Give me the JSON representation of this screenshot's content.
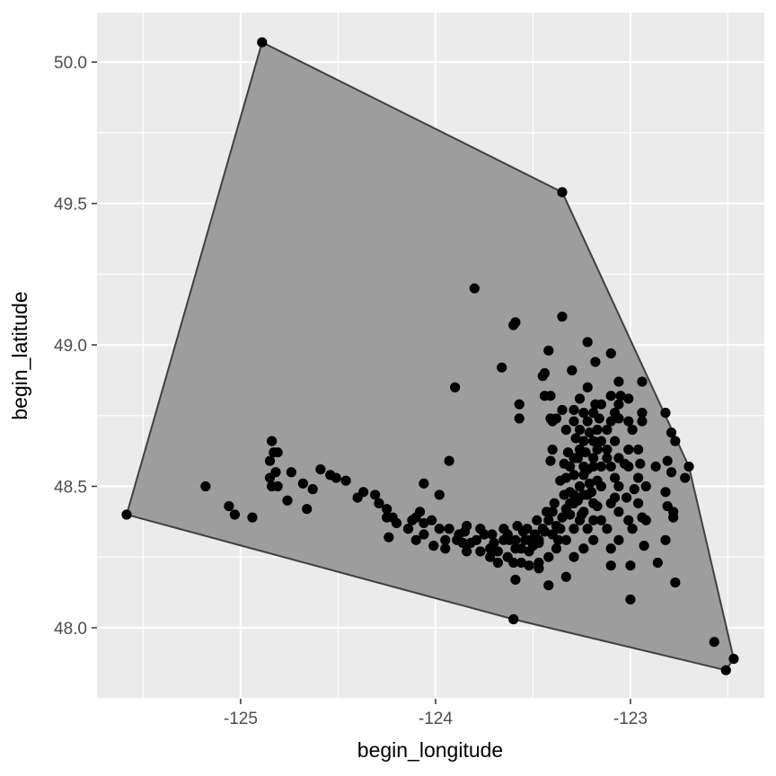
{
  "chart_data": {
    "type": "scatter",
    "title": "",
    "xlabel": "begin_longitude",
    "ylabel": "begin_latitude",
    "xlim": [
      -125.737,
      -122.313
    ],
    "ylim": [
      47.749,
      50.175
    ],
    "x_ticks": [
      -125,
      -124,
      -123
    ],
    "x_tick_labels": [
      "-125",
      "-124",
      "-123"
    ],
    "y_ticks": [
      48.0,
      48.5,
      49.0,
      49.5,
      50.0
    ],
    "y_tick_labels": [
      "48.0",
      "48.5",
      "49.0",
      "49.5",
      "50.0"
    ],
    "grid": true,
    "legend": "none",
    "colors": {
      "panel": "#EBEBEB",
      "grid": "#FFFFFF",
      "hull_fill": "#999999",
      "hull_stroke": "#404040",
      "points": "#000000"
    },
    "hull": [
      [
        -124.89,
        50.07
      ],
      [
        -123.35,
        49.54
      ],
      [
        -122.7,
        48.57
      ],
      [
        -122.47,
        47.89
      ],
      [
        -122.51,
        47.85
      ],
      [
        -123.6,
        48.03
      ],
      [
        -125.585,
        48.4
      ]
    ],
    "points": [
      [
        -124.89,
        50.07
      ],
      [
        -123.35,
        49.54
      ],
      [
        -123.8,
        49.2
      ],
      [
        -123.59,
        49.08
      ],
      [
        -123.6,
        49.07
      ],
      [
        -123.35,
        49.1
      ],
      [
        -123.42,
        48.98
      ],
      [
        -123.22,
        49.01
      ],
      [
        -123.66,
        48.92
      ],
      [
        -123.9,
        48.85
      ],
      [
        -123.57,
        48.79
      ],
      [
        -123.57,
        48.74
      ],
      [
        -123.45,
        48.89
      ],
      [
        -123.44,
        48.9
      ],
      [
        -123.41,
        48.82
      ],
      [
        -123.3,
        48.91
      ],
      [
        -123.18,
        48.94
      ],
      [
        -123.1,
        48.97
      ],
      [
        -122.94,
        48.87
      ],
      [
        -123.06,
        48.87
      ],
      [
        -122.82,
        48.76
      ],
      [
        -122.79,
        48.69
      ],
      [
        -122.77,
        48.66
      ],
      [
        -122.7,
        48.57
      ],
      [
        -122.72,
        48.53
      ],
      [
        -122.81,
        48.59
      ],
      [
        -122.79,
        48.55
      ],
      [
        -122.82,
        48.48
      ],
      [
        -122.81,
        48.43
      ],
      [
        -122.78,
        48.41
      ],
      [
        -122.82,
        48.31
      ],
      [
        -122.78,
        48.39
      ],
      [
        -122.86,
        48.23
      ],
      [
        -122.77,
        48.16
      ],
      [
        -122.47,
        47.89
      ],
      [
        -122.51,
        47.85
      ],
      [
        -122.57,
        47.95
      ],
      [
        -123.0,
        48.1
      ],
      [
        -123.0,
        48.22
      ],
      [
        -123.1,
        48.22
      ],
      [
        -122.93,
        48.29
      ],
      [
        -123.6,
        48.03
      ],
      [
        -123.47,
        48.21
      ],
      [
        -123.42,
        48.15
      ],
      [
        -123.33,
        48.18
      ],
      [
        -125.585,
        48.4
      ],
      [
        -125.18,
        48.5
      ],
      [
        -125.06,
        48.43
      ],
      [
        -125.03,
        48.4
      ],
      [
        -124.94,
        48.39
      ],
      [
        -124.84,
        48.66
      ],
      [
        -124.83,
        48.62
      ],
      [
        -124.85,
        48.59
      ],
      [
        -124.84,
        48.5
      ],
      [
        -124.76,
        48.45
      ],
      [
        -124.66,
        48.42
      ],
      [
        -124.68,
        48.51
      ],
      [
        -124.63,
        48.49
      ],
      [
        -124.59,
        48.56
      ],
      [
        -124.54,
        48.54
      ],
      [
        -124.51,
        48.53
      ],
      [
        -124.46,
        48.52
      ],
      [
        -124.4,
        48.46
      ],
      [
        -124.37,
        48.48
      ],
      [
        -124.31,
        48.47
      ],
      [
        -124.29,
        48.44
      ],
      [
        -124.25,
        48.42
      ],
      [
        -124.25,
        48.39
      ],
      [
        -124.22,
        48.39
      ],
      [
        -124.2,
        48.37
      ],
      [
        -124.24,
        48.32
      ],
      [
        -124.14,
        48.35
      ],
      [
        -124.12,
        48.38
      ],
      [
        -124.1,
        48.39
      ],
      [
        -124.08,
        48.41
      ],
      [
        -124.06,
        48.51
      ],
      [
        -123.98,
        48.47
      ],
      [
        -123.93,
        48.59
      ],
      [
        -124.06,
        48.37
      ],
      [
        -124.1,
        48.31
      ],
      [
        -124.01,
        48.29
      ],
      [
        -124.06,
        48.33
      ],
      [
        -124.02,
        48.38
      ],
      [
        -123.98,
        48.35
      ],
      [
        -123.95,
        48.31
      ],
      [
        -123.95,
        48.28
      ],
      [
        -123.93,
        48.35
      ],
      [
        -123.88,
        48.33
      ],
      [
        -123.86,
        48.3
      ],
      [
        -123.84,
        48.27
      ],
      [
        -123.79,
        48.31
      ],
      [
        -123.75,
        48.33
      ],
      [
        -123.72,
        48.28
      ],
      [
        -123.7,
        48.3
      ],
      [
        -123.68,
        48.27
      ],
      [
        -123.65,
        48.31
      ],
      [
        -123.63,
        48.33
      ],
      [
        -123.6,
        48.23
      ],
      [
        -123.59,
        48.17
      ],
      [
        -123.56,
        48.28
      ],
      [
        -123.54,
        48.31
      ],
      [
        -123.52,
        48.27
      ],
      [
        -123.49,
        48.33
      ],
      [
        -123.47,
        48.3
      ],
      [
        -123.45,
        48.35
      ],
      [
        -123.42,
        48.38
      ],
      [
        -123.4,
        48.33
      ],
      [
        -123.38,
        48.36
      ],
      [
        -123.35,
        48.39
      ],
      [
        -123.33,
        48.42
      ],
      [
        -123.31,
        48.44
      ],
      [
        -123.29,
        48.47
      ],
      [
        -123.26,
        48.5
      ],
      [
        -123.24,
        48.54
      ],
      [
        -123.22,
        48.56
      ],
      [
        -123.19,
        48.6
      ],
      [
        -123.17,
        48.63
      ],
      [
        -123.15,
        48.66
      ],
      [
        -123.12,
        48.7
      ],
      [
        -123.1,
        48.73
      ],
      [
        -123.08,
        48.76
      ],
      [
        -123.06,
        48.79
      ],
      [
        -123.05,
        48.82
      ],
      [
        -123.01,
        48.73
      ],
      [
        -122.99,
        48.7
      ],
      [
        -122.96,
        48.63
      ],
      [
        -123.24,
        48.66
      ],
      [
        -123.26,
        48.63
      ],
      [
        -123.29,
        48.6
      ],
      [
        -123.31,
        48.57
      ],
      [
        -123.22,
        48.47
      ],
      [
        -123.19,
        48.44
      ],
      [
        -123.17,
        48.43
      ],
      [
        -123.15,
        48.38
      ],
      [
        -123.12,
        48.35
      ],
      [
        -123.1,
        48.44
      ],
      [
        -123.08,
        48.46
      ],
      [
        -123.06,
        48.5
      ],
      [
        -123.01,
        48.57
      ],
      [
        -122.96,
        48.44
      ],
      [
        -122.94,
        48.39
      ],
      [
        -122.92,
        48.38
      ],
      [
        -122.99,
        48.35
      ],
      [
        -123.06,
        48.31
      ],
      [
        -123.1,
        48.28
      ],
      [
        -123.19,
        48.31
      ],
      [
        -123.24,
        48.28
      ],
      [
        -123.29,
        48.25
      ],
      [
        -123.33,
        48.31
      ],
      [
        -123.38,
        48.28
      ],
      [
        -123.42,
        48.25
      ],
      [
        -123.47,
        48.23
      ],
      [
        -123.29,
        48.73
      ],
      [
        -123.33,
        48.7
      ],
      [
        -123.38,
        48.74
      ],
      [
        -123.4,
        48.73
      ],
      [
        -123.35,
        48.77
      ],
      [
        -123.26,
        48.81
      ],
      [
        -123.22,
        48.85
      ],
      [
        -123.19,
        48.76
      ],
      [
        -123.15,
        48.79
      ],
      [
        -123.1,
        48.82
      ],
      [
        -123.01,
        48.81
      ],
      [
        -122.94,
        48.76
      ],
      [
        -122.94,
        48.73
      ],
      [
        -123.06,
        48.6
      ],
      [
        -123.03,
        48.58
      ],
      [
        -123.01,
        48.63
      ],
      [
        -122.95,
        48.58
      ],
      [
        -122.96,
        48.53
      ],
      [
        -122.98,
        48.49
      ],
      [
        -123.01,
        48.38
      ],
      [
        -122.92,
        48.5
      ],
      [
        -122.87,
        48.57
      ],
      [
        -123.17,
        48.52
      ],
      [
        -123.15,
        48.57
      ],
      [
        -123.12,
        48.6
      ],
      [
        -123.19,
        48.38
      ],
      [
        -123.22,
        48.35
      ],
      [
        -123.24,
        48.41
      ],
      [
        -123.26,
        48.38
      ],
      [
        -123.29,
        48.44
      ],
      [
        -123.31,
        48.48
      ],
      [
        -123.33,
        48.53
      ],
      [
        -123.22,
        48.73
      ],
      [
        -123.24,
        48.76
      ],
      [
        -123.26,
        48.7
      ],
      [
        -123.19,
        48.66
      ],
      [
        -123.17,
        48.7
      ],
      [
        -123.12,
        48.63
      ],
      [
        -123.08,
        48.66
      ],
      [
        -123.1,
        48.57
      ],
      [
        -123.15,
        48.5
      ],
      [
        -123.06,
        48.41
      ],
      [
        -123.02,
        48.46
      ],
      [
        -123.08,
        48.53
      ],
      [
        -123.52,
        48.22
      ],
      [
        -123.56,
        48.23
      ],
      [
        -123.63,
        48.25
      ],
      [
        -123.68,
        48.23
      ],
      [
        -123.72,
        48.25
      ],
      [
        -123.77,
        48.27
      ],
      [
        -123.82,
        48.3
      ],
      [
        -123.85,
        48.34
      ],
      [
        -123.89,
        48.31
      ],
      [
        -123.84,
        48.36
      ],
      [
        -123.77,
        48.35
      ],
      [
        -123.71,
        48.33
      ],
      [
        -123.65,
        48.35
      ],
      [
        -123.59,
        48.31
      ],
      [
        -123.53,
        48.35
      ],
      [
        -123.48,
        48.38
      ],
      [
        -123.43,
        48.41
      ],
      [
        -123.39,
        48.44
      ],
      [
        -123.34,
        48.47
      ],
      [
        -123.41,
        48.59
      ],
      [
        -123.4,
        48.63
      ],
      [
        -123.32,
        48.62
      ],
      [
        -123.29,
        48.54
      ],
      [
        -123.24,
        48.57
      ],
      [
        -123.18,
        48.79
      ],
      [
        -123.16,
        48.74
      ],
      [
        -123.06,
        48.74
      ],
      [
        -124.85,
        48.53
      ],
      [
        -124.81,
        48.5
      ],
      [
        -124.81,
        48.62
      ],
      [
        -124.82,
        48.55
      ],
      [
        -124.74,
        48.55
      ],
      [
        -123.4,
        48.41
      ],
      [
        -123.37,
        48.31
      ],
      [
        -123.29,
        48.35
      ],
      [
        -123.24,
        48.47
      ],
      [
        -123.19,
        48.57
      ],
      [
        -123.44,
        48.82
      ],
      [
        -123.41,
        48.74
      ],
      [
        -123.29,
        48.77
      ],
      [
        -123.47,
        48.31
      ],
      [
        -123.52,
        48.31
      ],
      [
        -123.59,
        48.28
      ],
      [
        -123.62,
        48.31
      ],
      [
        -123.36,
        48.52
      ],
      [
        -123.34,
        48.58
      ],
      [
        -123.28,
        48.67
      ],
      [
        -123.27,
        48.45
      ],
      [
        -123.25,
        48.4
      ],
      [
        -123.21,
        48.51
      ],
      [
        -123.2,
        48.48
      ],
      [
        -123.31,
        48.4
      ],
      [
        -123.36,
        48.35
      ],
      [
        -123.44,
        48.34
      ],
      [
        -123.5,
        48.29
      ],
      [
        -123.55,
        48.34
      ],
      [
        -123.58,
        48.36
      ],
      [
        -123.27,
        48.6
      ],
      [
        -123.23,
        48.62
      ],
      [
        -123.21,
        48.69
      ]
    ]
  }
}
